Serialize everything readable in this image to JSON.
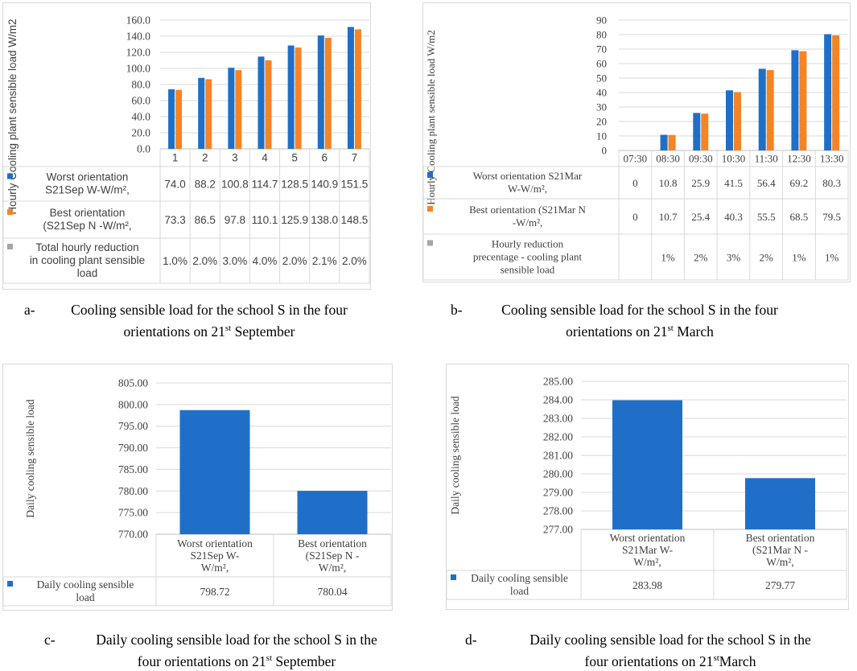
{
  "colors": {
    "worst": "#1F6FC8",
    "best": "#F58426",
    "reduction": "#A6A6A6",
    "grid": "#d9d9d9",
    "text": "#404040"
  },
  "chart_data": [
    {
      "id": "a",
      "type": "bar",
      "ylabel": "Hourly Cooling plant sensible load W/m2",
      "ylim": [
        0,
        160
      ],
      "yticks": [
        "0.0",
        "20.0",
        "40.0",
        "60.0",
        "80.0",
        "100.0",
        "120.0",
        "140.0",
        "160.0"
      ],
      "categories": [
        "1",
        "2",
        "3",
        "4",
        "5",
        "6",
        "7"
      ],
      "series": [
        {
          "name_lines": [
            "Worst orientation",
            "S21Sep W-W/m²,"
          ],
          "values": [
            74.0,
            88.2,
            100.8,
            114.7,
            128.5,
            140.9,
            151.5
          ],
          "labels": [
            "74.0",
            "88.2",
            "100.8",
            "114.7",
            "128.5",
            "140.9",
            "151.5"
          ]
        },
        {
          "name_lines": [
            "Best orientation",
            "(S21Sep N -W/m²,"
          ],
          "values": [
            73.3,
            86.5,
            97.8,
            110.1,
            125.9,
            138.0,
            148.5
          ],
          "labels": [
            "73.3",
            "86.5",
            "97.8",
            "110.1",
            "125.9",
            "138.0",
            "148.5"
          ]
        },
        {
          "name_lines": [
            "Total hourly reduction",
            "in cooling plant sensible",
            "load"
          ],
          "values": [
            1.0,
            2.0,
            3.0,
            4.0,
            2.0,
            2.1,
            2.0
          ],
          "labels": [
            "1.0%",
            "2.0%",
            "3.0%",
            "4.0%",
            "2.0%",
            "2.1%",
            "2.0%"
          ]
        }
      ],
      "caption": {
        "label": "a-",
        "lines": [
          "Cooling sensible load for the school S in the four",
          "orientations on 21"
        ],
        "sup": "st",
        "tail": " September"
      }
    },
    {
      "id": "b",
      "type": "bar",
      "ylabel": "Hourly Cooling plant sensible load W/m2",
      "ylim": [
        0,
        90
      ],
      "yticks": [
        "0",
        "10",
        "20",
        "30",
        "40",
        "50",
        "60",
        "70",
        "80",
        "90"
      ],
      "categories": [
        "07:30",
        "08:30",
        "09:30",
        "10:30",
        "11:30",
        "12:30",
        "13:30"
      ],
      "series": [
        {
          "name_lines": [
            "Worst orientation S21Mar",
            "W-W/m²,"
          ],
          "values": [
            0,
            10.8,
            25.9,
            41.5,
            56.4,
            69.2,
            80.3
          ],
          "labels": [
            "0",
            "10.8",
            "25.9",
            "41.5",
            "56.4",
            "69.2",
            "80.3"
          ]
        },
        {
          "name_lines": [
            "Best orientation (S21Mar N",
            "-W/m²,"
          ],
          "values": [
            0,
            10.7,
            25.4,
            40.3,
            55.5,
            68.5,
            79.5
          ],
          "labels": [
            "0",
            "10.7",
            "25.4",
            "40.3",
            "55.5",
            "68.5",
            "79.5"
          ]
        },
        {
          "name_lines": [
            "Hourly reduction",
            "precentage - cooling plant",
            "sensible load"
          ],
          "values": [
            null,
            1,
            2,
            3,
            2,
            1,
            1
          ],
          "labels": [
            "",
            "1%",
            "2%",
            "3%",
            "2%",
            "1%",
            "1%"
          ]
        }
      ],
      "caption": {
        "label": "b-",
        "lines": [
          "Cooling sensible load for the school S in the four",
          "orientations on 21"
        ],
        "sup": "st",
        "tail": " March"
      }
    },
    {
      "id": "c",
      "type": "bar",
      "ylabel": "Daily cooling sensible load",
      "ylim": [
        770,
        805
      ],
      "yticks": [
        "770.00",
        "775.00",
        "780.00",
        "785.00",
        "790.00",
        "795.00",
        "800.00",
        "805.00"
      ],
      "categories": [
        [
          "Worst orientation",
          "S21Sep W-",
          "W/m²,"
        ],
        [
          "Best orientation",
          "(S21Sep N -",
          "W/m²,"
        ]
      ],
      "series": [
        {
          "name_lines": [
            "Daily cooling sensible",
            "load"
          ],
          "values": [
            798.72,
            780.04
          ],
          "labels": [
            "798.72",
            "780.04"
          ]
        }
      ],
      "caption": {
        "label": "c-",
        "lines": [
          "Daily cooling sensible load for the school S in the",
          "four orientations on 21"
        ],
        "sup": "st",
        "tail": " September"
      }
    },
    {
      "id": "d",
      "type": "bar",
      "ylabel": "Daily cooling sensible load",
      "ylim": [
        277,
        285
      ],
      "yticks": [
        "277.00",
        "278.00",
        "279.00",
        "280.00",
        "281.00",
        "282.00",
        "283.00",
        "284.00",
        "285.00"
      ],
      "categories": [
        [
          "Worst orientation",
          "S21Mar W-",
          "W/m²,"
        ],
        [
          "Best orientation",
          "(S21Mar N -",
          "W/m²,"
        ]
      ],
      "series": [
        {
          "name_lines": [
            "Daily cooling sensible",
            "load"
          ],
          "values": [
            283.98,
            279.77
          ],
          "labels": [
            "283.98",
            "279.77"
          ]
        }
      ],
      "caption": {
        "label": "d-",
        "lines": [
          "Daily cooling sensible load for the school S in the",
          "four orientations on 21"
        ],
        "sup": "st",
        "tail": "March"
      }
    }
  ]
}
